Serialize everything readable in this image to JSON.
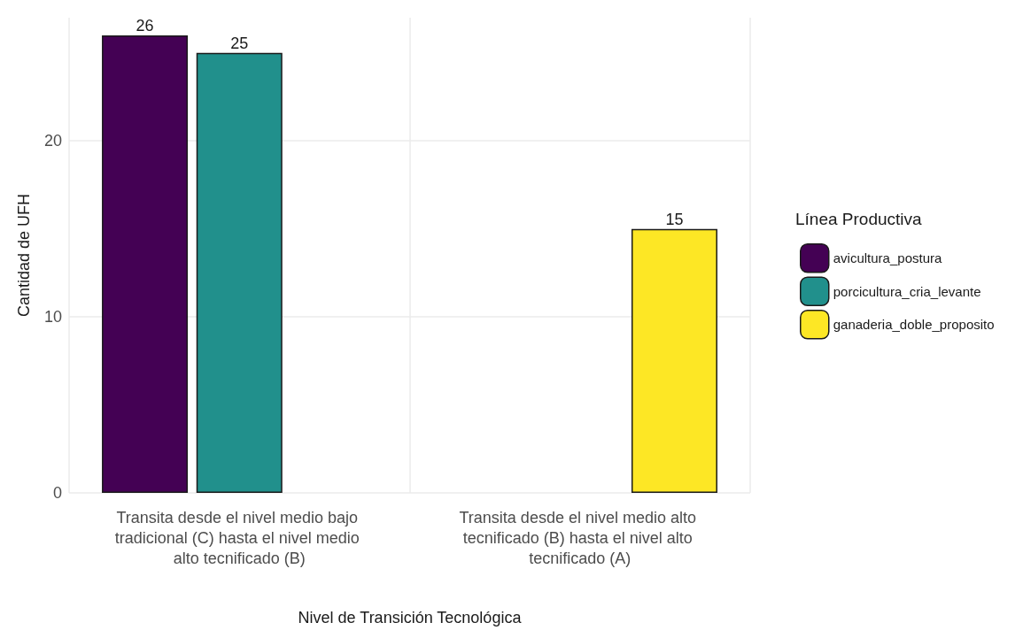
{
  "chart_data": {
    "type": "bar",
    "xlabel": "Nivel de Transición Tecnológica",
    "ylabel": "Cantidad de UFH",
    "legend_title": "Línea Productiva",
    "categories": [
      "Transita desde el nivel medio bajo tradicional (C) hasta el nivel medio alto tecnificado (B)",
      "Transita desde el nivel medio alto tecnificado (B) hasta el nivel alto tecnificado (A)"
    ],
    "series": [
      {
        "name": "avicultura_postura",
        "color": "#440154",
        "values": [
          26,
          null
        ]
      },
      {
        "name": "porcicultura_cria_levante",
        "color": "#21908c",
        "values": [
          25,
          null
        ]
      },
      {
        "name": "ganaderia_doble_proposito",
        "color": "#fde725",
        "values": [
          null,
          15
        ]
      }
    ],
    "ylim": [
      0,
      27
    ],
    "yticks": [
      0,
      10,
      20
    ],
    "grid": true,
    "legend": "right",
    "data_labels": true
  }
}
